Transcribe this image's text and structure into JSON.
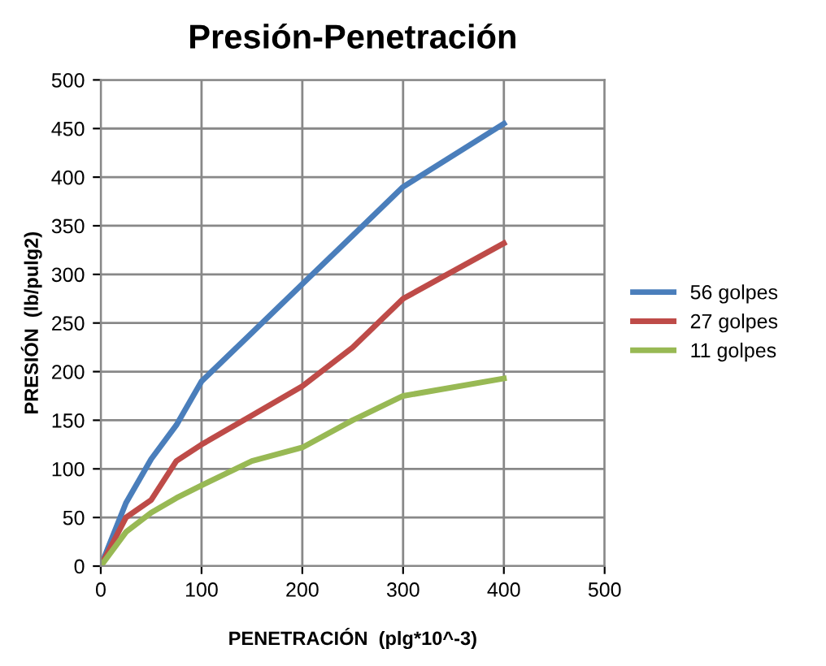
{
  "chart_data": {
    "type": "line",
    "title": "Presión-Penetración",
    "xlabel": "PENETRACIÓN  (plg*10^-3)",
    "ylabel": "PRESIÓN  (lb/pulg2)",
    "x": [
      0,
      25,
      50,
      75,
      100,
      150,
      200,
      250,
      300,
      400
    ],
    "series": [
      {
        "name": "56 golpes",
        "color": "#4a7ebb",
        "values": [
          0,
          65,
          110,
          145,
          190,
          240,
          290,
          340,
          390,
          455
        ]
      },
      {
        "name": "27 golpes",
        "color": "#be4b48",
        "values": [
          0,
          50,
          68,
          108,
          125,
          155,
          185,
          225,
          275,
          332
        ]
      },
      {
        "name": "11 golpes",
        "color": "#98b954",
        "values": [
          0,
          35,
          55,
          70,
          83,
          108,
          122,
          150,
          175,
          193
        ]
      }
    ],
    "xlim": [
      0,
      500
    ],
    "xticks": [
      0,
      100,
      200,
      300,
      400,
      500
    ],
    "ylim": [
      0,
      500
    ],
    "yticks": [
      0,
      50,
      100,
      150,
      200,
      250,
      300,
      350,
      400,
      450,
      500
    ],
    "grid": true,
    "legend": "right",
    "marker": "none",
    "line_style": "solid"
  }
}
